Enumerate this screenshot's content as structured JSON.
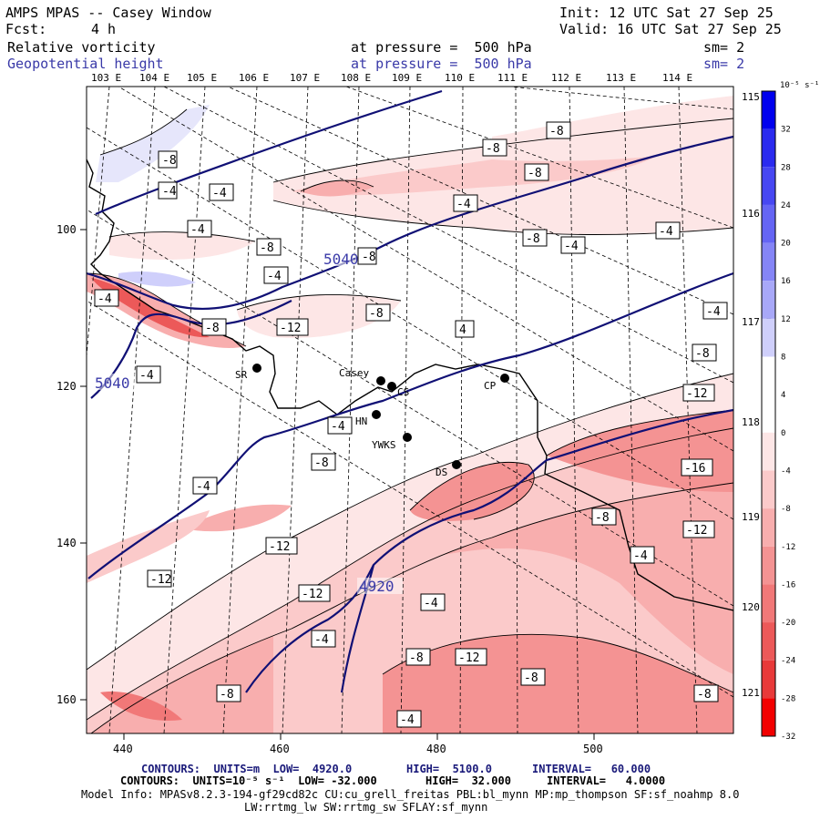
{
  "header": {
    "title": "AMPS MPAS -- Casey Window",
    "fcst_label": "Fcst:",
    "fcst_value": "4 h",
    "init": "Init: 12 UTC Sat 27 Sep 25",
    "valid": "Valid: 16 UTC Sat 27 Sep 25",
    "field1": {
      "name": "Relative vorticity",
      "pressure": "at pressure =  500 hPa",
      "sm": "sm= 2"
    },
    "field2": {
      "name": "Geopotential height",
      "pressure": "at pressure =  500 hPa",
      "sm": "sm= 2"
    }
  },
  "map": {
    "lon_labels": [
      "103 E",
      "104 E",
      "105 E",
      "106 E",
      "107 E",
      "108 E",
      "109 E",
      "110 E",
      "111 E",
      "112 E",
      "113 E",
      "114 E"
    ],
    "right_lon_labels": [
      "115 E",
      "116 E",
      "117 E",
      "118 E",
      "119 E",
      "120 E",
      "121 E"
    ],
    "x_ticks": [
      "440",
      "460",
      "480",
      "500"
    ],
    "y_ticks": [
      "100",
      "120",
      "140",
      "160"
    ],
    "stations": [
      {
        "name": "SR"
      },
      {
        "name": "Casey"
      },
      {
        "name": "CS"
      },
      {
        "name": "HN"
      },
      {
        "name": "YWKS"
      },
      {
        "name": "CP"
      },
      {
        "name": "DS"
      }
    ],
    "height_labels": [
      "5040",
      "5040",
      "4920"
    ],
    "vort_labels": [
      "-8",
      "-4",
      "-4",
      "-4",
      "-8",
      "-4",
      "-4",
      "-8",
      "-12",
      "-8",
      "-4",
      "-4",
      "-8",
      "-12",
      "-8",
      "-12",
      "-16",
      "-8",
      "-12",
      "-4",
      "-8",
      "-12",
      "-12",
      "-4",
      "-4",
      "-8",
      "-12",
      "-8",
      "-8",
      "-4",
      "-8",
      "-8",
      "-8",
      "-4",
      "-8",
      "-4",
      "-8",
      "-4",
      "-4",
      "4",
      "-4",
      "-8"
    ]
  },
  "colorbar": {
    "unit": "10⁻⁵ s⁻¹",
    "labels": [
      "32",
      "28",
      "24",
      "20",
      "16",
      "12",
      "8",
      "4",
      "0",
      "-4",
      "-8",
      "-12",
      "-16",
      "-20",
      "-24",
      "-28",
      "-32"
    ],
    "colors": [
      "#0000ee",
      "#2b2bef",
      "#4747f2",
      "#6565f4",
      "#8585f6",
      "#a8a8f8",
      "#cfcffb",
      "#ffffff",
      "#ffffff",
      "#fde6e6",
      "#fbcaca",
      "#f8aeae",
      "#f49393",
      "#f17878",
      "#ec5959",
      "#e83a3a",
      "#f20000"
    ]
  },
  "footer": {
    "line1_a": "CONTOURS:  UNITS=m  LOW=  4920.0",
    "line1_b": "HIGH=  5100.0",
    "line1_c": "INTERVAL=   60.000",
    "line2_a": "CONTOURS:  UNITS=10⁻⁵ s⁻¹  LOW= -32.000",
    "line2_b": "HIGH=  32.000",
    "line2_c": "INTERVAL=   4.0000",
    "line3": "Model Info: MPASv8.2.3-194-gf29cd82c CU:cu_grell_freitas PBL:bl_mynn MP:mp_thompson SF:sf_noahmp 8.0",
    "line4": "LW:rrtmg_lw SW:rrtmg_sw SFLAY:sf_mynn"
  }
}
